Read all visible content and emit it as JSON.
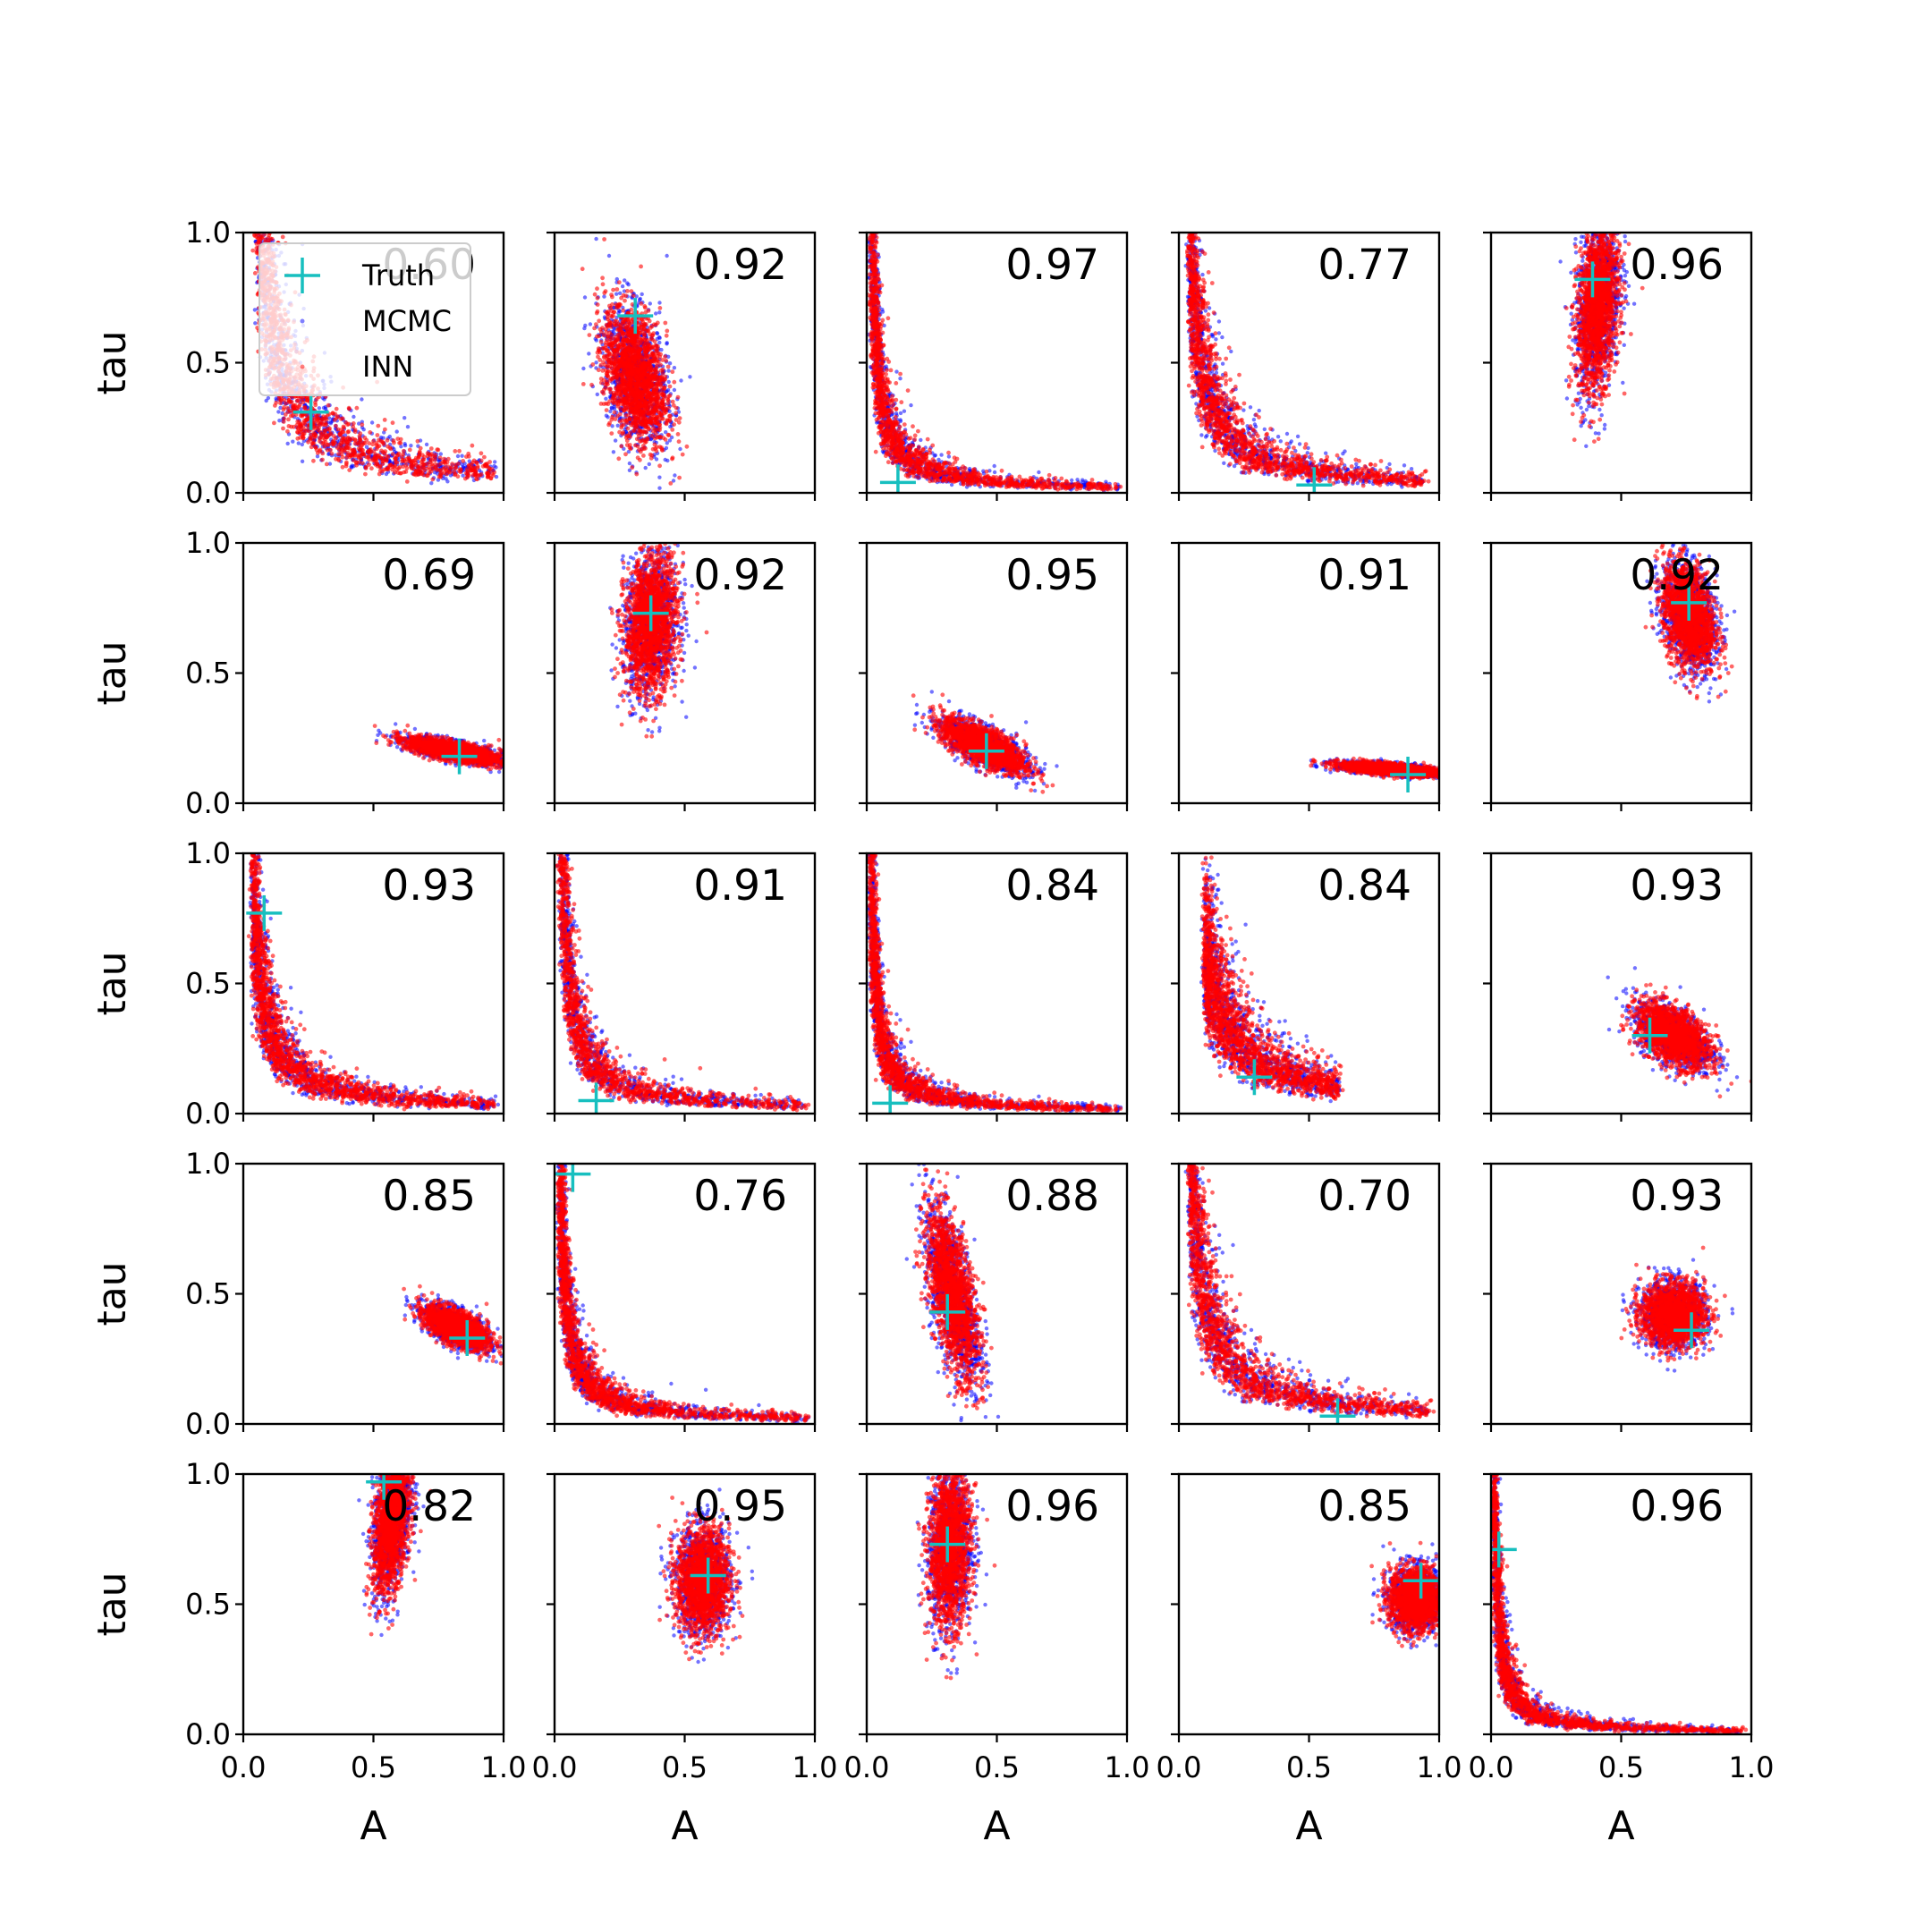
{
  "colors": {
    "truth": "#17bfbf",
    "mcmc": "#0000ff",
    "inn": "#ff0000",
    "axes": "#000000",
    "background": "#ffffff"
  },
  "chart_data": {
    "type": "scatter",
    "layout": "5x5 grid of subplots",
    "xlabel": "A",
    "ylabel": "tau",
    "xlim": [
      0,
      1
    ],
    "ylim": [
      0,
      1
    ],
    "xticks": [
      "0.0",
      "0.5",
      "1.0"
    ],
    "yticks": [
      "0.0",
      "0.5",
      "1.0"
    ],
    "grid": false,
    "legend": {
      "placement": "upper-left of first panel",
      "entries": [
        {
          "label": "Truth",
          "marker": "plus",
          "color": "#17bfbf"
        },
        {
          "label": "MCMC",
          "marker": "dot",
          "color": "#0000ff"
        },
        {
          "label": "INN",
          "marker": "dot",
          "color": "#ff0000"
        }
      ]
    },
    "panels": [
      {
        "score": "0.60",
        "truth": [
          0.26,
          0.31
        ],
        "shape": "curve",
        "k": 0.075,
        "xmin": 0.04,
        "xmax": 0.97
      },
      {
        "score": "0.92",
        "truth": [
          0.31,
          0.68
        ],
        "shape": "blob",
        "center": [
          0.31,
          0.45
        ],
        "sd": [
          0.06,
          0.13
        ],
        "rho": -0.35
      },
      {
        "score": "0.97",
        "truth": [
          0.12,
          0.04
        ],
        "shape": "curve",
        "k": 0.022,
        "xmin": 0.015,
        "xmax": 0.97
      },
      {
        "score": "0.77",
        "truth": [
          0.52,
          0.03
        ],
        "shape": "curve",
        "k": 0.045,
        "xmin": 0.04,
        "xmax": 0.95
      },
      {
        "score": "0.96",
        "truth": [
          0.39,
          0.82
        ],
        "shape": "blob",
        "center": [
          0.41,
          0.72
        ],
        "sd": [
          0.04,
          0.16
        ],
        "rho": 0.3
      },
      {
        "score": "0.69",
        "truth": [
          0.83,
          0.18
        ],
        "shape": "blob",
        "center": [
          0.81,
          0.2
        ],
        "sd": [
          0.09,
          0.025
        ],
        "rho": -0.7
      },
      {
        "score": "0.92",
        "truth": [
          0.37,
          0.73
        ],
        "shape": "blob",
        "center": [
          0.37,
          0.69
        ],
        "sd": [
          0.05,
          0.13
        ],
        "rho": 0.15
      },
      {
        "score": "0.95",
        "truth": [
          0.46,
          0.2
        ],
        "shape": "blob",
        "center": [
          0.45,
          0.22
        ],
        "sd": [
          0.08,
          0.05
        ],
        "rho": -0.7
      },
      {
        "score": "0.91",
        "truth": [
          0.88,
          0.11
        ],
        "shape": "blob",
        "center": [
          0.82,
          0.13
        ],
        "sd": [
          0.1,
          0.013
        ],
        "rho": -0.6
      },
      {
        "score": "0.92",
        "truth": [
          0.76,
          0.77
        ],
        "shape": "blob",
        "center": [
          0.76,
          0.72
        ],
        "sd": [
          0.05,
          0.1
        ],
        "rho": -0.3
      },
      {
        "score": "0.93",
        "truth": [
          0.08,
          0.77
        ],
        "shape": "curve",
        "k": 0.035,
        "xmin": 0.035,
        "xmax": 0.97
      },
      {
        "score": "0.91",
        "truth": [
          0.16,
          0.05
        ],
        "shape": "curve",
        "k": 0.03,
        "xmin": 0.015,
        "xmax": 0.97
      },
      {
        "score": "0.84",
        "truth": [
          0.09,
          0.04
        ],
        "shape": "curve",
        "k": 0.018,
        "xmin": 0.015,
        "xmax": 0.97
      },
      {
        "score": "0.84",
        "truth": [
          0.29,
          0.14
        ],
        "shape": "curve",
        "k": 0.065,
        "xmin": 0.1,
        "xmax": 0.62
      },
      {
        "score": "0.93",
        "truth": [
          0.61,
          0.3
        ],
        "shape": "blob",
        "center": [
          0.7,
          0.3
        ],
        "sd": [
          0.07,
          0.06
        ],
        "rho": -0.5
      },
      {
        "score": "0.85",
        "truth": [
          0.86,
          0.33
        ],
        "shape": "blob",
        "center": [
          0.82,
          0.37
        ],
        "sd": [
          0.06,
          0.04
        ],
        "rho": -0.6
      },
      {
        "score": "0.76",
        "truth": [
          0.07,
          0.96
        ],
        "shape": "curve",
        "k": 0.022,
        "xmin": 0.02,
        "xmax": 0.97
      },
      {
        "score": "0.88",
        "truth": [
          0.31,
          0.43
        ],
        "shape": "blob",
        "center": [
          0.33,
          0.5
        ],
        "sd": [
          0.05,
          0.16
        ],
        "rho": -0.6
      },
      {
        "score": "0.70",
        "truth": [
          0.61,
          0.03
        ],
        "shape": "curve",
        "k": 0.05,
        "xmin": 0.04,
        "xmax": 0.97
      },
      {
        "score": "0.93",
        "truth": [
          0.77,
          0.36
        ],
        "shape": "blob",
        "center": [
          0.7,
          0.42
        ],
        "sd": [
          0.06,
          0.06
        ],
        "rho": 0.0
      },
      {
        "score": "0.82",
        "truth": [
          0.54,
          0.97
        ],
        "shape": "blob",
        "center": [
          0.57,
          0.82
        ],
        "sd": [
          0.035,
          0.13
        ],
        "rho": 0.4
      },
      {
        "score": "0.95",
        "truth": [
          0.59,
          0.61
        ],
        "shape": "blob",
        "center": [
          0.57,
          0.59
        ],
        "sd": [
          0.05,
          0.1
        ],
        "rho": 0.0
      },
      {
        "score": "0.96",
        "truth": [
          0.31,
          0.73
        ],
        "shape": "blob",
        "center": [
          0.32,
          0.72
        ],
        "sd": [
          0.04,
          0.15
        ],
        "rho": 0.1
      },
      {
        "score": "0.85",
        "truth": [
          0.93,
          0.59
        ],
        "shape": "blob",
        "center": [
          0.91,
          0.52
        ],
        "sd": [
          0.05,
          0.06
        ],
        "rho": 0.0
      },
      {
        "score": "0.96",
        "truth": [
          0.03,
          0.71
        ],
        "shape": "curve",
        "k": 0.014,
        "xmin": 0.01,
        "xmax": 0.97
      }
    ]
  }
}
